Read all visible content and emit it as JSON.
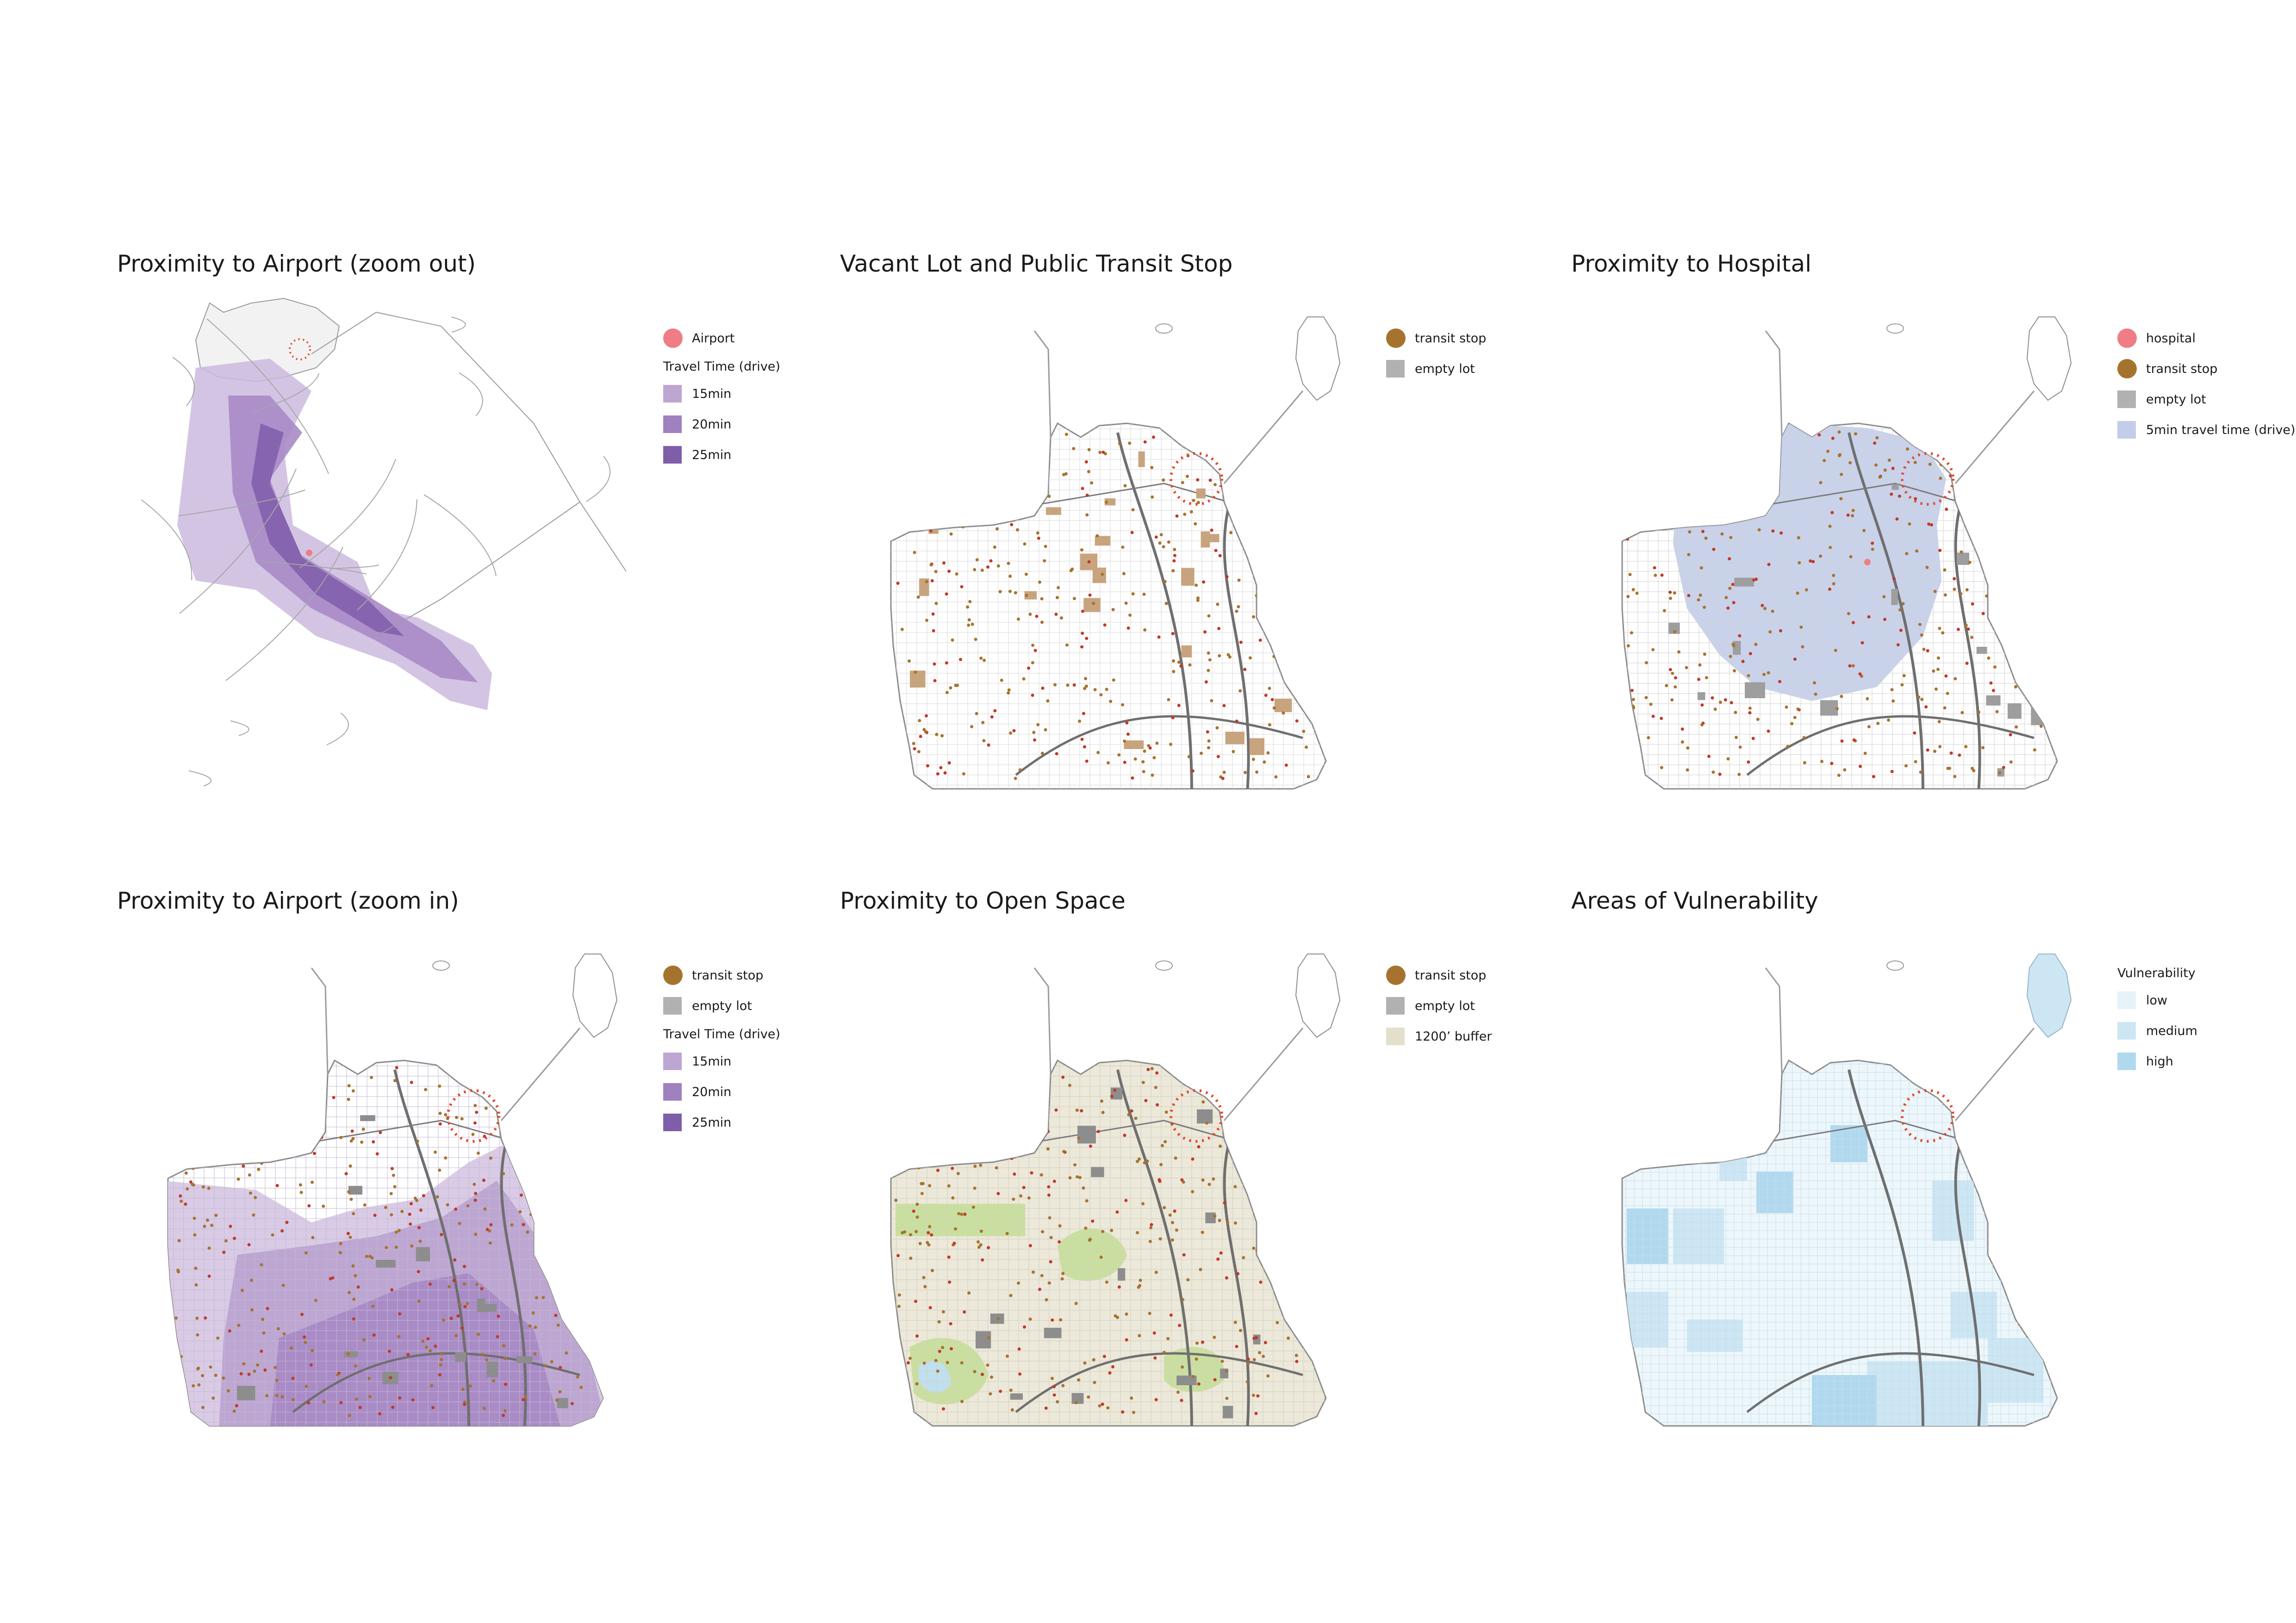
{
  "panels": [
    {
      "title": "Proximity to Airport (zoom out)",
      "map": "airport-zoom-out",
      "legend": [
        {
          "type": "dot",
          "label": "Airport",
          "color": "#ee7d85"
        },
        {
          "type": "header",
          "label": "Travel Time (drive)"
        },
        {
          "type": "square",
          "label": "15min",
          "color": "#bda6d2"
        },
        {
          "type": "square",
          "label": "20min",
          "color": "#9f81c0"
        },
        {
          "type": "square",
          "label": "25min",
          "color": "#7f5ea9"
        }
      ]
    },
    {
      "title": "Vacant Lot and Public Transit Stop",
      "map": "vacant-transit",
      "legend": [
        {
          "type": "dot",
          "label": "transit stop",
          "color": "#a6732e"
        },
        {
          "type": "square",
          "label": "empty lot",
          "color": "#b1b1b1"
        }
      ]
    },
    {
      "title": "Proximity to Hospital",
      "map": "hospital",
      "legend": [
        {
          "type": "dot",
          "label": "hospital",
          "color": "#ee7d85"
        },
        {
          "type": "dot",
          "label": "transit stop",
          "color": "#a6732e"
        },
        {
          "type": "square",
          "label": "empty lot",
          "color": "#b1b1b1"
        },
        {
          "type": "square",
          "label": "5min travel time (drive)",
          "color": "#c3cde9"
        }
      ]
    },
    {
      "title": "Proximity to Airport (zoom in)",
      "map": "airport-zoom-in",
      "legend": [
        {
          "type": "dot",
          "label": "transit stop",
          "color": "#a6732e"
        },
        {
          "type": "square",
          "label": "empty lot",
          "color": "#b1b1b1"
        },
        {
          "type": "header",
          "label": "Travel Time (drive)"
        },
        {
          "type": "square",
          "label": "15min",
          "color": "#bda6d2"
        },
        {
          "type": "square",
          "label": "20min",
          "color": "#9f81c0"
        },
        {
          "type": "square",
          "label": "25min",
          "color": "#7f5ea9"
        }
      ]
    },
    {
      "title": "Proximity to Open Space",
      "map": "open-space",
      "legend": [
        {
          "type": "dot",
          "label": "transit stop",
          "color": "#a6732e"
        },
        {
          "type": "square",
          "label": "empty lot",
          "color": "#b1b1b1"
        },
        {
          "type": "square",
          "label": "1200’ buffer",
          "color": "#e3dfcb"
        }
      ]
    },
    {
      "title": "Areas of Vulnerability",
      "map": "vulnerability",
      "legend": [
        {
          "type": "header",
          "label": "Vulnerability"
        },
        {
          "type": "square",
          "label": "low",
          "color": "#e6f4fa"
        },
        {
          "type": "square",
          "label": "medium",
          "color": "#cce6f4"
        },
        {
          "type": "square",
          "label": "high",
          "color": "#b0d9ef"
        }
      ]
    }
  ]
}
